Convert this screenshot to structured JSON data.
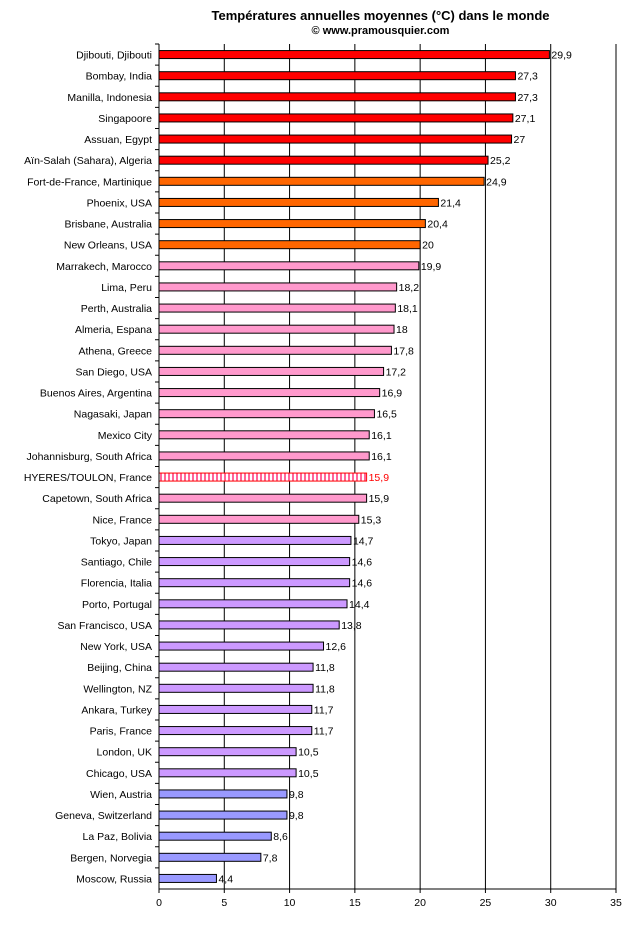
{
  "chart_data": {
    "type": "bar",
    "orientation": "horizontal",
    "title": "Températures annuelles moyennes (°C) dans le monde",
    "subtitle": "© www.pramousquier.com",
    "xlim": [
      0,
      35
    ],
    "xticks": [
      "0",
      "5",
      "10",
      "15",
      "20",
      "25",
      "30",
      "35"
    ],
    "grid": "vertical",
    "colors": {
      "red": "#ff0000",
      "orange": "#ff6600",
      "pink": "#ff99cc",
      "violet": "#9999ff",
      "highlight": "#ff0000"
    },
    "bars": [
      {
        "label": "Djibouti, Djibouti",
        "value": 29.9,
        "value_label": "29,9",
        "color": "#ff0000"
      },
      {
        "label": "Bombay, India",
        "value": 27.3,
        "value_label": "27,3",
        "color": "#ff0000"
      },
      {
        "label": "Manilla, Indonesia",
        "value": 27.3,
        "value_label": "27,3",
        "color": "#ff0000"
      },
      {
        "label": "Singapoore",
        "value": 27.1,
        "value_label": "27,1",
        "color": "#ff0000"
      },
      {
        "label": "Assuan, Egypt",
        "value": 27,
        "value_label": "27",
        "color": "#ff0000"
      },
      {
        "label": "Aïn-Salah (Sahara), Algeria",
        "value": 25.2,
        "value_label": "25,2",
        "color": "#ff0000"
      },
      {
        "label": "Fort-de-France, Martinique",
        "value": 24.9,
        "value_label": "24,9",
        "color": "#ff6600"
      },
      {
        "label": "Phoenix, USA",
        "value": 21.4,
        "value_label": "21,4",
        "color": "#ff6600"
      },
      {
        "label": "Brisbane, Australia",
        "value": 20.4,
        "value_label": "20,4",
        "color": "#ff6600"
      },
      {
        "label": "New Orleans, USA",
        "value": 20,
        "value_label": "20",
        "color": "#ff6600"
      },
      {
        "label": "Marrakech, Marocco",
        "value": 19.9,
        "value_label": "19,9",
        "color": "#ff99cc"
      },
      {
        "label": "Lima, Peru",
        "value": 18.2,
        "value_label": "18,2",
        "color": "#ff99cc"
      },
      {
        "label": "Perth, Australia",
        "value": 18.1,
        "value_label": "18,1",
        "color": "#ff99cc"
      },
      {
        "label": "Almeria, Espana",
        "value": 18,
        "value_label": "18",
        "color": "#ff99cc"
      },
      {
        "label": "Athena, Greece",
        "value": 17.8,
        "value_label": "17,8",
        "color": "#ff99cc"
      },
      {
        "label": "San Diego, USA",
        "value": 17.2,
        "value_label": "17,2",
        "color": "#ff99cc"
      },
      {
        "label": "Buenos Aires, Argentina",
        "value": 16.9,
        "value_label": "16,9",
        "color": "#ff99cc"
      },
      {
        "label": "Nagasaki, Japan",
        "value": 16.5,
        "value_label": "16,5",
        "color": "#ff99cc"
      },
      {
        "label": "Mexico City",
        "value": 16.1,
        "value_label": "16,1",
        "color": "#ff99cc"
      },
      {
        "label": "Johannisburg, South Africa",
        "value": 16.1,
        "value_label": "16,1",
        "color": "#ff99cc"
      },
      {
        "label": "HYERES/TOULON, France",
        "value": 15.9,
        "value_label": "15,9",
        "color": "#ff0000",
        "highlight": true
      },
      {
        "label": "Capetown, South Africa",
        "value": 15.9,
        "value_label": "15,9",
        "color": "#ff99cc"
      },
      {
        "label": "Nice, France",
        "value": 15.3,
        "value_label": "15,3",
        "color": "#ff99cc"
      },
      {
        "label": "Tokyo, Japan",
        "value": 14.7,
        "value_label": "14,7",
        "color": "#cc99ff"
      },
      {
        "label": "Santiago, Chile",
        "value": 14.6,
        "value_label": "14,6",
        "color": "#cc99ff"
      },
      {
        "label": "Florencia, Italia",
        "value": 14.6,
        "value_label": "14,6",
        "color": "#cc99ff"
      },
      {
        "label": "Porto, Portugal",
        "value": 14.4,
        "value_label": "14,4",
        "color": "#cc99ff"
      },
      {
        "label": "San Francisco, USA",
        "value": 13.8,
        "value_label": "13,8",
        "color": "#cc99ff"
      },
      {
        "label": "New York, USA",
        "value": 12.6,
        "value_label": "12,6",
        "color": "#cc99ff"
      },
      {
        "label": "Beijing, China",
        "value": 11.8,
        "value_label": "11,8",
        "color": "#cc99ff"
      },
      {
        "label": "Wellington, NZ",
        "value": 11.8,
        "value_label": "11,8",
        "color": "#cc99ff"
      },
      {
        "label": "Ankara, Turkey",
        "value": 11.7,
        "value_label": "11,7",
        "color": "#cc99ff"
      },
      {
        "label": "Paris, France",
        "value": 11.7,
        "value_label": "11,7",
        "color": "#cc99ff"
      },
      {
        "label": "London, UK",
        "value": 10.5,
        "value_label": "10,5",
        "color": "#cc99ff"
      },
      {
        "label": "Chicago, USA",
        "value": 10.5,
        "value_label": "10,5",
        "color": "#cc99ff"
      },
      {
        "label": "Wien, Austria",
        "value": 9.8,
        "value_label": "9,8",
        "color": "#9999ff"
      },
      {
        "label": "Geneva, Switzerland",
        "value": 9.8,
        "value_label": "9,8",
        "color": "#9999ff"
      },
      {
        "label": "La Paz, Bolivia",
        "value": 8.6,
        "value_label": "8,6",
        "color": "#9999ff"
      },
      {
        "label": "Bergen, Norvegia",
        "value": 7.8,
        "value_label": "7,8",
        "color": "#9999ff"
      },
      {
        "label": "Moscow, Russia",
        "value": 4.4,
        "value_label": "4,4",
        "color": "#9999ff"
      }
    ]
  }
}
